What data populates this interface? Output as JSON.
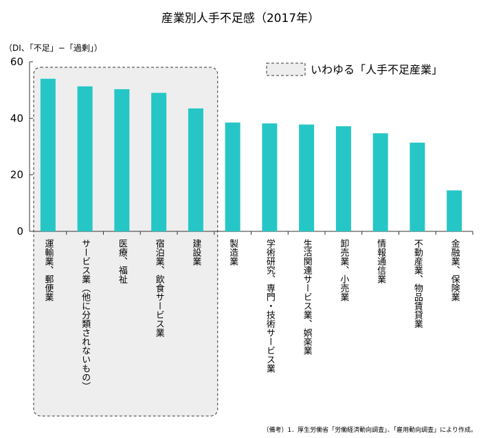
{
  "chart_data": {
    "type": "bar",
    "title": "産業別人手不足感（2017年）",
    "unit_label": "（DI、「不足」−「過剰」）",
    "ylim": [
      0,
      60
    ],
    "yticks": [
      "0",
      "20",
      "40",
      "60"
    ],
    "grid": false,
    "categories": [
      "運輸業、郵便業",
      "サービス業（他に分類されないもの）",
      "医療、福祉",
      "宿泊業、飲食サービス業",
      "建設業",
      "製造業",
      "学術研究、専門・技術サービス業",
      "生活関連サービス業、娯楽業",
      "卸売業、小売業",
      "情報通信業",
      "不動産業、物品賃貸業",
      "金融業、保険業"
    ],
    "values": [
      54,
      51.3,
      50.3,
      49,
      43.5,
      38.5,
      38.2,
      37.8,
      37.2,
      34.7,
      31.4,
      14.5
    ],
    "bar_color": "#26c6c6",
    "highlight": {
      "label": "いわゆる「人手不足産業」",
      "count": 5,
      "fill": "#eeeeee"
    },
    "source_note": "（備考）1．厚生労働省「労働経済動向調査」、「雇用動向調査」により作成。"
  }
}
